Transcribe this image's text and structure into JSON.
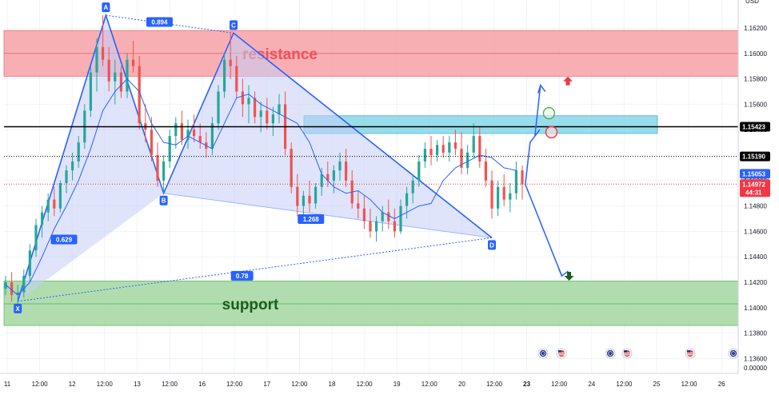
{
  "chart_data": {
    "type": "candlestick",
    "y_axis": {
      "range": [
        1.1345,
        1.1635
      ],
      "ticks": [
        "1.16200",
        "1.16000",
        "1.15800",
        "1.15600",
        "1.15400",
        "1.15200",
        "1.15000",
        "1.14800",
        "1.14600",
        "1.14400",
        "1.14200",
        "1.14000",
        "1.13800",
        "1.13600"
      ],
      "extra_ticks": [
        "0.00000",
        "USD"
      ]
    },
    "x_axis": {
      "ticks": [
        "11",
        "12:00",
        "12",
        "12:00",
        "13",
        "12:00",
        "16",
        "12:00",
        "17",
        "12:00",
        "18",
        "12:00",
        "19",
        "12:00",
        "20",
        "12:00",
        "23",
        "12:00",
        "24",
        "12:00",
        "25",
        "12:00",
        "26"
      ],
      "bold_ticks": [
        "23"
      ]
    },
    "zones": [
      {
        "name": "resistance",
        "from": 1.1582,
        "to": 1.1618,
        "mid": 1.16,
        "color": "#f7a1a6",
        "line_color": "#e57373",
        "text_color": "#f0515c"
      },
      {
        "name": "support",
        "from": 1.1386,
        "to": 1.1421,
        "mid": 1.1403,
        "color": "#a3d7a0",
        "line_color": "#66bb6a",
        "text_color": "#1b5e20"
      },
      {
        "name": "",
        "from": 1.1537,
        "to": 1.1551,
        "color": "#7fd3e6"
      }
    ],
    "horizontal_lines": [
      {
        "price": 1.15423,
        "label": "1.15423",
        "color": "#000000",
        "style": "solid"
      },
      {
        "price": 1.1519,
        "label": "1.15190",
        "color": "#000000",
        "style": "dotted"
      },
      {
        "price": 1.14972,
        "label": "1.14972",
        "color": "#f23645",
        "style": "dotted"
      }
    ],
    "price_tags": [
      {
        "price": 1.15053,
        "label": "1.15053",
        "bg": "#2962ff",
        "color": "#ffffff"
      },
      {
        "price": 1.14972,
        "label": "1.14972",
        "sub": "44:31",
        "bg": "#f23645",
        "color": "#ffffff"
      }
    ],
    "harmonic_points": [
      {
        "name": "X",
        "x": 2.0,
        "y": 1.1405
      },
      {
        "name": "A",
        "x": 16.5,
        "y": 1.163
      },
      {
        "name": "B",
        "x": 26.0,
        "y": 1.149
      },
      {
        "name": "C",
        "x": 37.5,
        "y": 1.1616
      },
      {
        "name": "D",
        "x": 80.0,
        "y": 1.1455
      }
    ],
    "ratios": [
      {
        "label": "0.894",
        "between": [
          "A",
          "C"
        ]
      },
      {
        "label": "0.629",
        "between": [
          "X",
          "B"
        ]
      },
      {
        "label": "1.268",
        "between": [
          "B",
          "D"
        ]
      },
      {
        "label": "0.78",
        "between": [
          "X",
          "D"
        ]
      }
    ],
    "projection": {
      "up": [
        [
          85.5,
          1.1497
        ],
        [
          88.0,
          1.1575
        ]
      ],
      "down": [
        [
          85.5,
          1.1497
        ],
        [
          91.5,
          1.1425
        ]
      ],
      "circles": [
        {
          "x": 89.4,
          "y": 1.1553,
          "color": "#4caf50"
        },
        {
          "x": 89.8,
          "y": 1.1538,
          "color": "#f23645"
        }
      ],
      "up_arrow": {
        "x": 92.5,
        "y": 1.1578,
        "color": "#f23645"
      },
      "down_arrow": {
        "x": 92.7,
        "y": 1.1425,
        "color": "#1b5e20"
      }
    },
    "ma_line": [
      [
        0,
        1.1418
      ],
      [
        2,
        1.141
      ],
      [
        4,
        1.142
      ],
      [
        6,
        1.144
      ],
      [
        8,
        1.1462
      ],
      [
        10,
        1.148
      ],
      [
        12,
        1.15
      ],
      [
        14,
        1.1525
      ],
      [
        16,
        1.1555
      ],
      [
        18,
        1.157
      ],
      [
        20,
        1.158
      ],
      [
        22,
        1.157
      ],
      [
        24,
        1.1545
      ],
      [
        26,
        1.153
      ],
      [
        28,
        1.1528
      ],
      [
        30,
        1.1535
      ],
      [
        32,
        1.153
      ],
      [
        34,
        1.1525
      ],
      [
        36,
        1.1545
      ],
      [
        38,
        1.1565
      ],
      [
        40,
        1.1568
      ],
      [
        42,
        1.156
      ],
      [
        44,
        1.1555
      ],
      [
        46,
        1.155
      ],
      [
        48,
        1.1545
      ],
      [
        50,
        1.153
      ],
      [
        52,
        1.1505
      ],
      [
        54,
        1.1495
      ],
      [
        56,
        1.149
      ],
      [
        58,
        1.1492
      ],
      [
        60,
        1.1485
      ],
      [
        62,
        1.1475
      ],
      [
        64,
        1.147
      ],
      [
        66,
        1.1475
      ],
      [
        68,
        1.148
      ],
      [
        70,
        1.1482
      ],
      [
        72,
        1.15
      ],
      [
        74,
        1.151
      ],
      [
        76,
        1.1515
      ],
      [
        78,
        1.152
      ],
      [
        80,
        1.1518
      ],
      [
        82,
        1.151
      ],
      [
        84,
        1.1508
      ]
    ],
    "candles": [
      [
        0,
        1.1415,
        1.1425,
        1.141,
        1.142
      ],
      [
        1,
        1.142,
        1.1428,
        1.1405,
        1.141
      ],
      [
        2,
        1.141,
        1.1418,
        1.1402,
        1.1412
      ],
      [
        3,
        1.1412,
        1.143,
        1.1408,
        1.1425
      ],
      [
        4,
        1.1425,
        1.145,
        1.142,
        1.1445
      ],
      [
        5,
        1.1445,
        1.147,
        1.144,
        1.1465
      ],
      [
        6,
        1.1465,
        1.148,
        1.1455,
        1.1475
      ],
      [
        7,
        1.1475,
        1.149,
        1.1468,
        1.1485
      ],
      [
        8,
        1.1485,
        1.1495,
        1.1472,
        1.1478
      ],
      [
        9,
        1.1478,
        1.15,
        1.1475,
        1.1498
      ],
      [
        10,
        1.1498,
        1.1512,
        1.149,
        1.1508
      ],
      [
        11,
        1.1508,
        1.1522,
        1.15,
        1.1515
      ],
      [
        12,
        1.1515,
        1.1535,
        1.151,
        1.153
      ],
      [
        13,
        1.153,
        1.156,
        1.1525,
        1.1555
      ],
      [
        14,
        1.1555,
        1.159,
        1.155,
        1.1585
      ],
      [
        15,
        1.1585,
        1.1612,
        1.157,
        1.1605
      ],
      [
        16,
        1.1605,
        1.163,
        1.159,
        1.1595
      ],
      [
        17,
        1.1595,
        1.1605,
        1.157,
        1.1578
      ],
      [
        18,
        1.1578,
        1.1595,
        1.156,
        1.1585
      ],
      [
        19,
        1.1585,
        1.159,
        1.1565,
        1.157
      ],
      [
        20,
        1.157,
        1.16,
        1.1565,
        1.1595
      ],
      [
        21,
        1.1595,
        1.161,
        1.1585,
        1.159
      ],
      [
        22,
        1.159,
        1.1598,
        1.154,
        1.1545
      ],
      [
        23,
        1.1545,
        1.156,
        1.153,
        1.154
      ],
      [
        24,
        1.154,
        1.155,
        1.1515,
        1.152
      ],
      [
        25,
        1.152,
        1.153,
        1.1495,
        1.15
      ],
      [
        26,
        1.15,
        1.152,
        1.149,
        1.1515
      ],
      [
        27,
        1.1515,
        1.154,
        1.151,
        1.1535
      ],
      [
        28,
        1.1535,
        1.155,
        1.1525,
        1.1545
      ],
      [
        29,
        1.1545,
        1.1555,
        1.1528,
        1.1532
      ],
      [
        30,
        1.1532,
        1.1548,
        1.1525,
        1.154
      ],
      [
        31,
        1.154,
        1.1552,
        1.153,
        1.1535
      ],
      [
        32,
        1.1535,
        1.1545,
        1.1525,
        1.153
      ],
      [
        33,
        1.153,
        1.1538,
        1.1518,
        1.1525
      ],
      [
        34,
        1.1525,
        1.155,
        1.152,
        1.1545
      ],
      [
        35,
        1.1545,
        1.1575,
        1.154,
        1.157
      ],
      [
        36,
        1.157,
        1.16,
        1.1565,
        1.1595
      ],
      [
        37,
        1.1595,
        1.1616,
        1.158,
        1.159
      ],
      [
        38,
        1.159,
        1.1598,
        1.1565,
        1.157
      ],
      [
        39,
        1.157,
        1.158,
        1.155,
        1.156
      ],
      [
        40,
        1.156,
        1.1575,
        1.1545,
        1.1565
      ],
      [
        41,
        1.1565,
        1.157,
        1.1545,
        1.155
      ],
      [
        42,
        1.155,
        1.1562,
        1.1538,
        1.1555
      ],
      [
        43,
        1.1555,
        1.1565,
        1.154,
        1.1545
      ],
      [
        44,
        1.1545,
        1.1558,
        1.1535,
        1.1552
      ],
      [
        45,
        1.1552,
        1.1568,
        1.1545,
        1.156
      ],
      [
        46,
        1.156,
        1.157,
        1.152,
        1.1525
      ],
      [
        47,
        1.1525,
        1.153,
        1.149,
        1.1495
      ],
      [
        48,
        1.1495,
        1.1505,
        1.1472,
        1.148
      ],
      [
        49,
        1.148,
        1.1492,
        1.147,
        1.1488
      ],
      [
        50,
        1.1488,
        1.15,
        1.1475,
        1.1482
      ],
      [
        51,
        1.1482,
        1.1498,
        1.1478,
        1.1495
      ],
      [
        52,
        1.1495,
        1.151,
        1.1488,
        1.1505
      ],
      [
        53,
        1.1505,
        1.1515,
        1.1495,
        1.15
      ],
      [
        54,
        1.15,
        1.1512,
        1.149,
        1.1508
      ],
      [
        55,
        1.1508,
        1.1522,
        1.15,
        1.1515
      ],
      [
        56,
        1.1515,
        1.1525,
        1.1495,
        1.15
      ],
      [
        57,
        1.15,
        1.1508,
        1.1478,
        1.1482
      ],
      [
        58,
        1.1482,
        1.1492,
        1.147,
        1.1478
      ],
      [
        59,
        1.1478,
        1.1488,
        1.1462,
        1.1468
      ],
      [
        60,
        1.1468,
        1.1478,
        1.1455,
        1.146
      ],
      [
        61,
        1.146,
        1.1472,
        1.1452,
        1.1468
      ],
      [
        62,
        1.1468,
        1.148,
        1.146,
        1.1475
      ],
      [
        63,
        1.1475,
        1.1485,
        1.1462,
        1.1468
      ],
      [
        64,
        1.1468,
        1.1478,
        1.1455,
        1.146
      ],
      [
        65,
        1.146,
        1.1485,
        1.1458,
        1.148
      ],
      [
        66,
        1.148,
        1.1495,
        1.147,
        1.149
      ],
      [
        67,
        1.149,
        1.1505,
        1.1482,
        1.15
      ],
      [
        68,
        1.15,
        1.152,
        1.1495,
        1.1515
      ],
      [
        69,
        1.1515,
        1.153,
        1.151,
        1.1525
      ],
      [
        70,
        1.1525,
        1.1535,
        1.1512,
        1.152
      ],
      [
        71,
        1.152,
        1.1532,
        1.1515,
        1.1528
      ],
      [
        72,
        1.1528,
        1.1535,
        1.1518,
        1.1522
      ],
      [
        73,
        1.1522,
        1.1535,
        1.1515,
        1.153
      ],
      [
        74,
        1.153,
        1.154,
        1.152,
        1.1525
      ],
      [
        75,
        1.1525,
        1.1538,
        1.1505,
        1.151
      ],
      [
        76,
        1.151,
        1.1528,
        1.1505,
        1.1522
      ],
      [
        77,
        1.1522,
        1.1545,
        1.1518,
        1.1535
      ],
      [
        78,
        1.1535,
        1.1542,
        1.151,
        1.1515
      ],
      [
        79,
        1.1515,
        1.1525,
        1.1495,
        1.15
      ],
      [
        80,
        1.15,
        1.1508,
        1.147,
        1.1478
      ],
      [
        81,
        1.1478,
        1.15,
        1.1472,
        1.1495
      ],
      [
        82,
        1.1495,
        1.1505,
        1.148,
        1.1485
      ],
      [
        83,
        1.1485,
        1.1498,
        1.1475,
        1.149
      ],
      [
        84,
        1.149,
        1.1515,
        1.1485,
        1.1508
      ],
      [
        85,
        1.1508,
        1.1512,
        1.1485,
        1.1497
      ]
    ],
    "event_icons": [
      {
        "x": 84.8,
        "kind": "globe"
      },
      {
        "x": 87.3,
        "kind": "us-flag"
      },
      {
        "x": 95.0,
        "kind": "globe"
      },
      {
        "x": 97.5,
        "kind": "us-flag"
      },
      {
        "x": 107.5,
        "kind": "us-flag"
      },
      {
        "x": 114.5,
        "kind": "globe"
      }
    ],
    "colors": {
      "up": "#26a69a",
      "down": "#ef5350",
      "ma": "#2962ff",
      "pattern_fill": "#c5cef7",
      "pattern_line": "#2962ff"
    }
  }
}
